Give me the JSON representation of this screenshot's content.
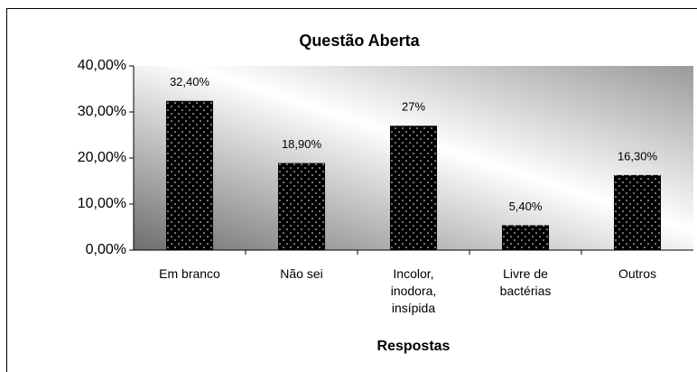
{
  "chart_data": {
    "type": "bar",
    "title": "Questão Aberta",
    "x_label": "Respostas",
    "categories": [
      "Em branco",
      "Não sei",
      "Incolor, inodora, insípida",
      "Livre de bactérias",
      "Outros"
    ],
    "values": [
      32.4,
      18.9,
      27,
      5.4,
      16.3
    ],
    "value_labels": [
      "32,40%",
      "18,90%",
      "27%",
      "5,40%",
      "16,30%"
    ],
    "color": "#000000",
    "ylim": [
      0,
      40
    ],
    "yticks": [
      {
        "value": 0,
        "label": "0,00%"
      },
      {
        "value": 10,
        "label": "10,00%"
      },
      {
        "value": 20,
        "label": "20,00%"
      },
      {
        "value": 30,
        "label": "30,00%"
      },
      {
        "value": 40,
        "label": "40,00%"
      }
    ],
    "grid": false
  }
}
